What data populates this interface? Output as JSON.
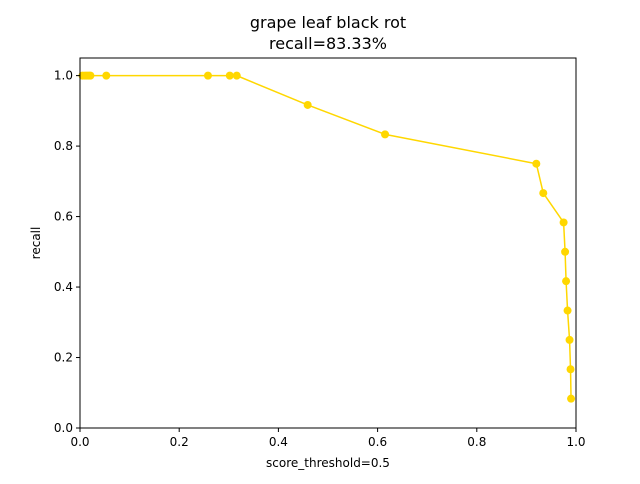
{
  "chart_data": {
    "type": "line",
    "title": "grape leaf black rot",
    "subtitle": "recall=83.33%",
    "xlabel": "score_threshold=0.5",
    "ylabel": "recall",
    "xlim": [
      0.0,
      1.0
    ],
    "ylim": [
      0.0,
      1.05
    ],
    "xticks": [
      "0.0",
      "0.2",
      "0.4",
      "0.6",
      "0.8",
      "1.0"
    ],
    "yticks": [
      "0.0",
      "0.2",
      "0.4",
      "0.6",
      "0.8",
      "1.0"
    ],
    "grid": false,
    "legend": "none",
    "series": [
      {
        "color": "#ffd700",
        "marker": "circle",
        "points": [
          {
            "x": 0.005,
            "y": 1.0
          },
          {
            "x": 0.01,
            "y": 1.0
          },
          {
            "x": 0.014,
            "y": 1.0
          },
          {
            "x": 0.018,
            "y": 1.0
          },
          {
            "x": 0.021,
            "y": 1.0
          },
          {
            "x": 0.053,
            "y": 1.0
          },
          {
            "x": 0.258,
            "y": 1.0
          },
          {
            "x": 0.302,
            "y": 1.0
          },
          {
            "x": 0.316,
            "y": 1.0
          },
          {
            "x": 0.459,
            "y": 0.9167
          },
          {
            "x": 0.615,
            "y": 0.8333
          },
          {
            "x": 0.92,
            "y": 0.75
          },
          {
            "x": 0.934,
            "y": 0.6667
          },
          {
            "x": 0.975,
            "y": 0.5833
          },
          {
            "x": 0.978,
            "y": 0.5
          },
          {
            "x": 0.98,
            "y": 0.4167
          },
          {
            "x": 0.983,
            "y": 0.3333
          },
          {
            "x": 0.987,
            "y": 0.25
          },
          {
            "x": 0.989,
            "y": 0.1667
          },
          {
            "x": 0.99,
            "y": 0.0833
          }
        ]
      }
    ]
  }
}
